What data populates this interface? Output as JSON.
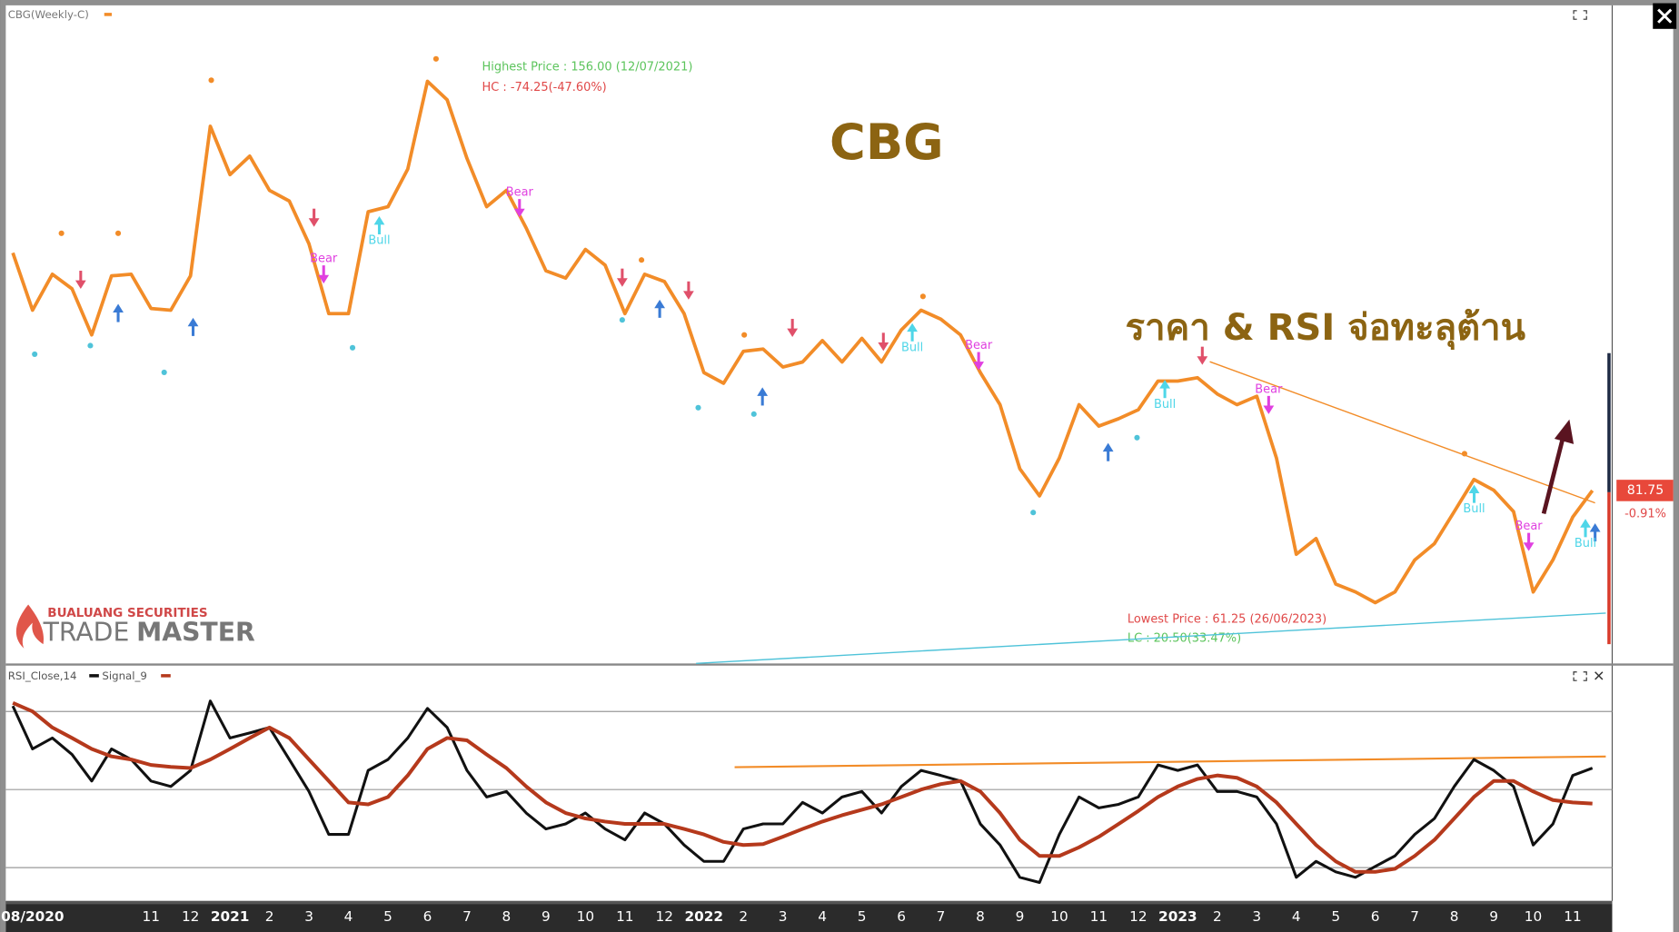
{
  "chart_data": [
    {
      "type": "line",
      "title": "CBG(Weekly-C)",
      "heading": "CBG",
      "callout": "ราคา & RSI จ่อทะลุต้าน",
      "annotations": [
        "Highest Price : 156.00 (12/07/2021)",
        "HC : -74.25(-47.60%)",
        "Lowest Price : 61.25 (26/06/2023)",
        "LC : 20.50(33.47%)"
      ],
      "categories": [
        null,
        "08/2020",
        null,
        null,
        null,
        null,
        null,
        "11",
        null,
        "12",
        null,
        "2021",
        null,
        "2",
        null,
        "3",
        null,
        "4",
        null,
        "5",
        null,
        "6",
        null,
        "7",
        null,
        "8",
        null,
        "9",
        null,
        "10",
        null,
        "11",
        null,
        "12",
        null,
        "2022",
        null,
        "2",
        null,
        "3",
        null,
        "4",
        null,
        "5",
        null,
        "6",
        null,
        "7",
        null,
        "8",
        null,
        "9",
        null,
        "10",
        null,
        "11",
        null,
        "12",
        null,
        "2023",
        null,
        "2",
        null,
        "3",
        null,
        "4",
        null,
        "5",
        null,
        "6",
        null,
        "7",
        null,
        "8",
        null,
        "9",
        null,
        "10",
        null,
        "11",
        null
      ],
      "series": [
        {
          "color": "#f28c28",
          "values": [
            124.0,
            113.8,
            120.2,
            117.6,
            109.4,
            119.9,
            120.2,
            114.1,
            113.8,
            119.9,
            146.5,
            137.9,
            141.2,
            135.1,
            133.2,
            125.6,
            113.2,
            113.2,
            131.3,
            132.2,
            138.9,
            154.5,
            151.2,
            140.8,
            132.2,
            135.1,
            128.4,
            120.8,
            119.5,
            124.6,
            121.8,
            113.2,
            120.2,
            118.9,
            113.2,
            102.7,
            100.8,
            106.5,
            106.9,
            103.7,
            104.6,
            108.4,
            104.6,
            108.8,
            104.6,
            110.3,
            113.8,
            112.2,
            109.4,
            102.7,
            97.0,
            85.6,
            80.8,
            87.5,
            97.0,
            93.2,
            94.5,
            96.1,
            101.2,
            101.2,
            101.8,
            98.9,
            97.0,
            98.5,
            87.5,
            70.4,
            73.2,
            65.1,
            63.7,
            61.8,
            63.7,
            69.4,
            72.3,
            78.0,
            83.7,
            81.8,
            78.0,
            63.7,
            69.4,
            77.0,
            81.75
          ]
        }
      ],
      "ylim": [
        51,
        168
      ],
      "last_price": 81.75,
      "change_label": "-0.91%",
      "signals": [
        "Bear",
        "Bull",
        "Bear",
        "Bull",
        "Bear",
        "Bull",
        "Bear",
        "Bull",
        "Bear",
        "Bull"
      ]
    },
    {
      "type": "line",
      "series": [
        {
          "name": "RSI_Close,14",
          "color": "#111111",
          "values": [
            71.4,
            60.4,
            63.2,
            59.0,
            52.2,
            60.4,
            57.7,
            52.2,
            50.8,
            54.9,
            72.7,
            63.2,
            64.5,
            65.9,
            57.7,
            49.5,
            38.5,
            38.5,
            54.9,
            57.7,
            63.2,
            70.8,
            65.9,
            54.9,
            48.1,
            49.5,
            44.0,
            39.9,
            41.2,
            44.0,
            39.9,
            37.1,
            44.0,
            41.2,
            35.8,
            31.6,
            31.6,
            39.9,
            41.2,
            41.2,
            46.7,
            44.0,
            48.1,
            49.5,
            44.0,
            50.8,
            54.9,
            53.6,
            52.2,
            41.2,
            35.8,
            27.5,
            26.2,
            38.5,
            48.1,
            45.3,
            46.2,
            48.1,
            56.3,
            54.9,
            56.3,
            49.5,
            49.5,
            48.1,
            41.2,
            27.5,
            31.6,
            28.9,
            27.5,
            30.3,
            33.0,
            38.5,
            42.6,
            50.8,
            57.7,
            54.9,
            50.8,
            35.8,
            41.2,
            53.6,
            55.5
          ]
        },
        {
          "name": "Signal_9",
          "color": "#b5391c",
          "values": [
            72.2,
            70.0,
            65.9,
            63.2,
            60.4,
            58.5,
            57.7,
            56.3,
            55.8,
            55.5,
            57.7,
            60.4,
            63.2,
            65.9,
            63.2,
            57.7,
            52.2,
            46.7,
            46.2,
            48.1,
            53.6,
            60.4,
            63.2,
            62.6,
            59.0,
            55.5,
            50.8,
            46.7,
            44.0,
            42.6,
            41.8,
            41.2,
            41.2,
            41.2,
            39.9,
            38.5,
            36.6,
            35.8,
            36.0,
            37.9,
            39.9,
            41.8,
            43.4,
            44.8,
            46.2,
            48.1,
            50.0,
            51.4,
            52.2,
            49.5,
            44.0,
            37.1,
            33.0,
            33.0,
            35.2,
            37.9,
            41.2,
            44.5,
            48.1,
            50.8,
            52.7,
            53.6,
            53.0,
            50.8,
            46.7,
            41.2,
            35.8,
            31.6,
            28.9,
            28.9,
            29.7,
            33.0,
            37.1,
            42.6,
            48.1,
            52.2,
            52.2,
            49.5,
            47.3,
            46.7,
            46.4
          ]
        }
      ],
      "ylim": [
        22,
        80.4
      ],
      "reference_lines": [
        30,
        50,
        70
      ]
    }
  ],
  "logo": {
    "company": "BUALUANG SECURITIES",
    "brand_light": "TRADE",
    "brand_bold": "MASTER"
  }
}
